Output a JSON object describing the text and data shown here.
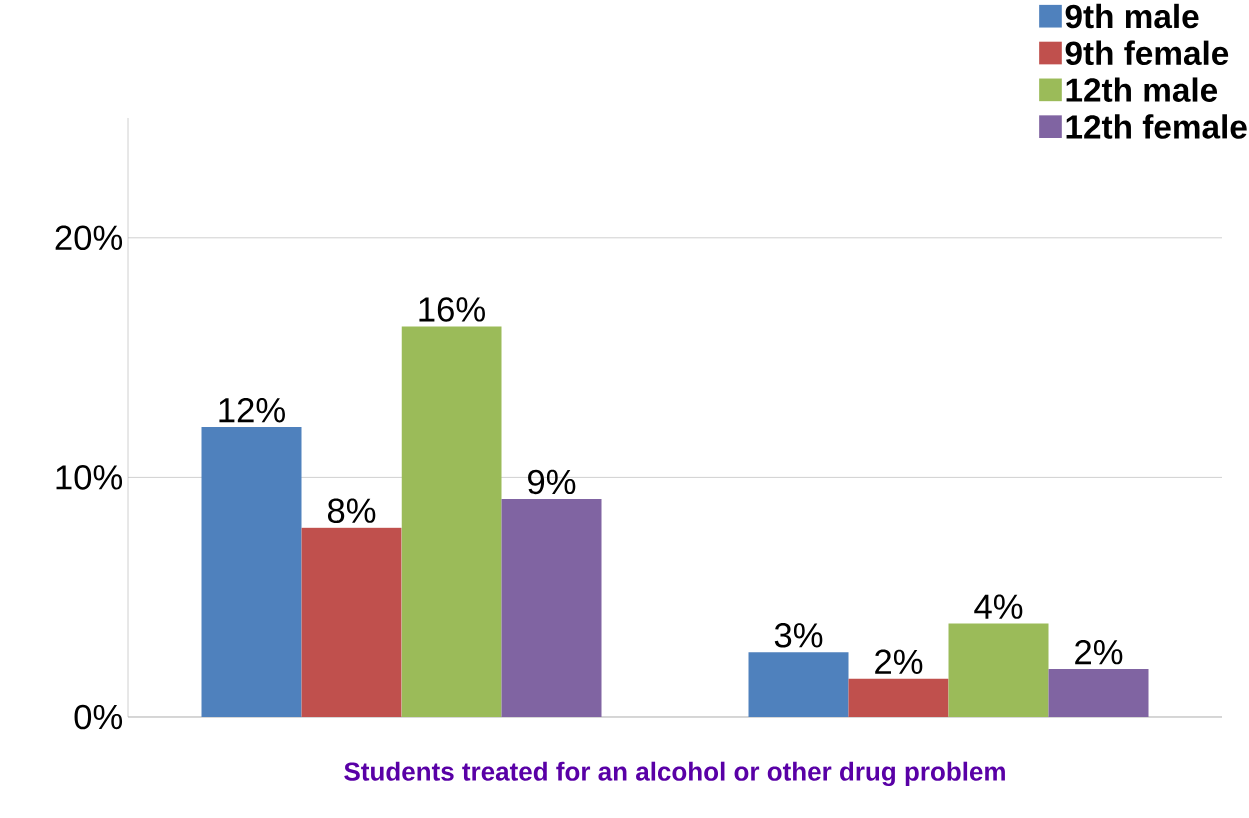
{
  "chart_data": {
    "type": "bar",
    "xlabel": "Students treated for an alcohol or other drug problem",
    "categories": [
      null,
      null
    ],
    "series": [
      {
        "name": "9th male",
        "color": "#4f81bd",
        "values": [
          12.1,
          2.7
        ],
        "value_labels": [
          "12%",
          "3%"
        ]
      },
      {
        "name": "9th female",
        "color": "#c0504d",
        "values": [
          7.9,
          1.6
        ],
        "value_labels": [
          "8%",
          "2%"
        ]
      },
      {
        "name": "12th male",
        "color": "#9bbb59",
        "values": [
          16.3,
          3.9
        ],
        "value_labels": [
          "16%",
          "4%"
        ]
      },
      {
        "name": "12th female",
        "color": "#8064a2",
        "values": [
          9.1,
          2.0
        ],
        "value_labels": [
          "9%",
          "2%"
        ]
      }
    ],
    "ylim": [
      0,
      25
    ],
    "yticks": [
      {
        "value": 0,
        "label": "0%"
      },
      {
        "value": 10,
        "label": "10%"
      },
      {
        "value": 20,
        "label": "20%"
      }
    ],
    "grid": "y",
    "legend": "top right"
  }
}
